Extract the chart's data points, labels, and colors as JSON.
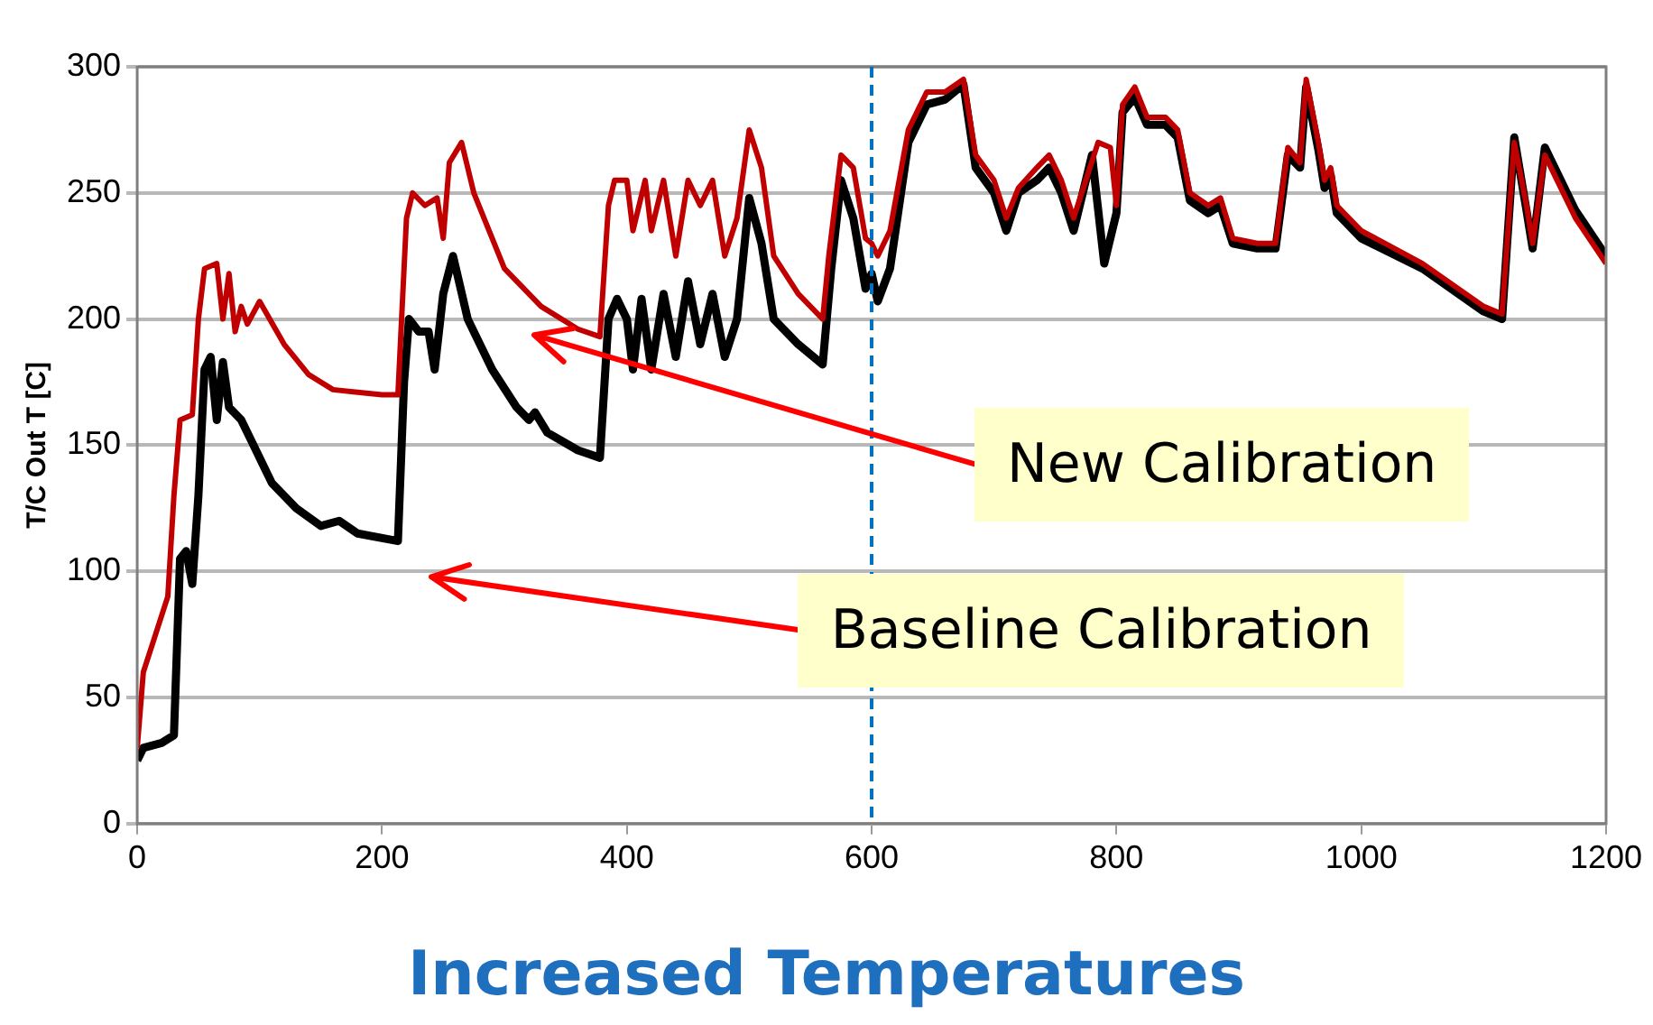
{
  "chart_data": {
    "type": "line",
    "title": "Increased Temperatures",
    "ylabel": "T/C Out T [C]",
    "xlim": [
      0,
      1200
    ],
    "xticks": [
      0,
      200,
      400,
      600,
      800,
      1000,
      1200
    ],
    "ylim": [
      0,
      300
    ],
    "yticks": [
      0,
      50,
      100,
      150,
      200,
      250,
      300
    ],
    "grid": "y",
    "legend": false,
    "marker": "none",
    "line_style": "solid",
    "ref_lines": [
      {
        "axis": "x",
        "value": 600,
        "color": "#0070c0",
        "line_style": "dashed"
      }
    ],
    "annotations": [
      "New Calibration",
      "Baseline Calibration"
    ],
    "series": [
      {
        "color": "#c00000",
        "x": [
          0,
          5,
          15,
          25,
          30,
          35,
          45,
          50,
          55,
          65,
          70,
          75,
          80,
          85,
          90,
          100,
          120,
          140,
          160,
          180,
          200,
          213,
          220,
          225,
          235,
          245,
          250,
          255,
          265,
          275,
          300,
          330,
          360,
          378,
          385,
          390,
          400,
          405,
          415,
          420,
          430,
          440,
          450,
          460,
          470,
          480,
          490,
          500,
          510,
          520,
          540,
          560,
          565,
          575,
          585,
          595,
          600,
          605,
          615,
          630,
          645,
          660,
          675,
          685,
          700,
          710,
          720,
          735,
          745,
          755,
          765,
          785,
          795,
          800,
          805,
          815,
          825,
          840,
          850,
          860,
          875,
          885,
          895,
          915,
          930,
          940,
          950,
          955,
          965,
          970,
          975,
          980,
          990,
          1000,
          1050,
          1100,
          1115,
          1125,
          1135,
          1140,
          1150,
          1160,
          1175,
          1200
        ],
        "values": [
          30,
          60,
          75,
          90,
          130,
          160,
          162,
          200,
          220,
          222,
          200,
          218,
          195,
          205,
          198,
          207,
          190,
          178,
          172,
          171,
          170,
          170,
          240,
          250,
          245,
          248,
          232,
          262,
          270,
          250,
          220,
          205,
          196,
          193,
          245,
          255,
          255,
          235,
          255,
          235,
          255,
          225,
          255,
          245,
          255,
          225,
          240,
          275,
          260,
          225,
          210,
          200,
          225,
          265,
          260,
          232,
          230,
          225,
          235,
          275,
          290,
          290,
          295,
          265,
          255,
          240,
          252,
          260,
          265,
          255,
          240,
          270,
          268,
          245,
          285,
          292,
          280,
          280,
          275,
          250,
          245,
          248,
          232,
          230,
          230,
          268,
          262,
          295,
          270,
          255,
          260,
          245,
          240,
          235,
          222,
          205,
          202,
          270,
          245,
          230,
          265,
          255,
          240,
          222
        ]
      },
      {
        "color": "#000000",
        "x": [
          0,
          5,
          20,
          30,
          35,
          40,
          45,
          50,
          55,
          60,
          65,
          70,
          75,
          85,
          95,
          110,
          130,
          150,
          165,
          180,
          213,
          218,
          222,
          230,
          238,
          243,
          250,
          258,
          270,
          290,
          310,
          320,
          325,
          335,
          360,
          378,
          385,
          392,
          400,
          405,
          412,
          420,
          430,
          440,
          450,
          460,
          470,
          480,
          490,
          500,
          510,
          520,
          540,
          560,
          567,
          575,
          585,
          595,
          600,
          605,
          615,
          630,
          645,
          660,
          675,
          685,
          700,
          710,
          720,
          735,
          745,
          755,
          765,
          780,
          790,
          800,
          805,
          815,
          825,
          840,
          850,
          860,
          875,
          885,
          895,
          915,
          930,
          940,
          950,
          955,
          965,
          970,
          975,
          980,
          990,
          1000,
          1050,
          1100,
          1115,
          1125,
          1135,
          1140,
          1150,
          1160,
          1175,
          1200
        ],
        "values": [
          25,
          30,
          32,
          35,
          105,
          108,
          95,
          130,
          180,
          185,
          160,
          183,
          165,
          160,
          150,
          135,
          125,
          118,
          120,
          115,
          112,
          175,
          200,
          195,
          195,
          180,
          210,
          225,
          200,
          180,
          165,
          160,
          163,
          155,
          148,
          145,
          200,
          208,
          200,
          180,
          208,
          180,
          210,
          185,
          215,
          190,
          210,
          185,
          200,
          248,
          230,
          200,
          190,
          182,
          220,
          255,
          240,
          212,
          218,
          207,
          220,
          270,
          285,
          287,
          293,
          260,
          250,
          235,
          250,
          255,
          260,
          250,
          235,
          265,
          222,
          242,
          282,
          288,
          277,
          277,
          272,
          247,
          242,
          245,
          230,
          228,
          228,
          265,
          260,
          292,
          267,
          252,
          257,
          242,
          237,
          232,
          220,
          203,
          200,
          272,
          243,
          228,
          268,
          258,
          243,
          225
        ]
      }
    ]
  }
}
